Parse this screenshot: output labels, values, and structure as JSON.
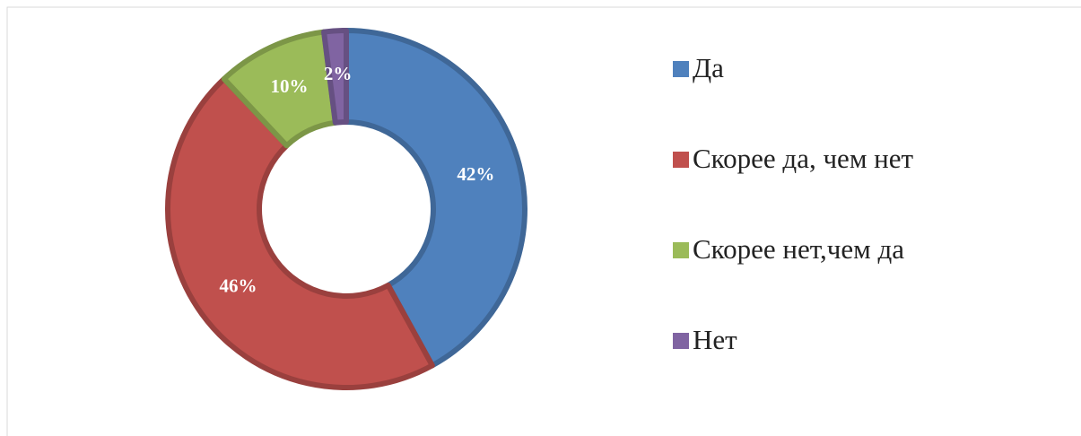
{
  "chart_data": {
    "type": "pie",
    "categories": [
      "Да",
      "Скорее да, чем нет",
      "Скорее нет,чем да",
      "Нет"
    ],
    "values": [
      42,
      46,
      10,
      2
    ],
    "value_labels": [
      "42%",
      "46%",
      "10%",
      "2%"
    ],
    "colors": [
      "#4f81bd",
      "#c0504d",
      "#9bbb59",
      "#8064a2"
    ],
    "donut": true,
    "legend": "right"
  }
}
